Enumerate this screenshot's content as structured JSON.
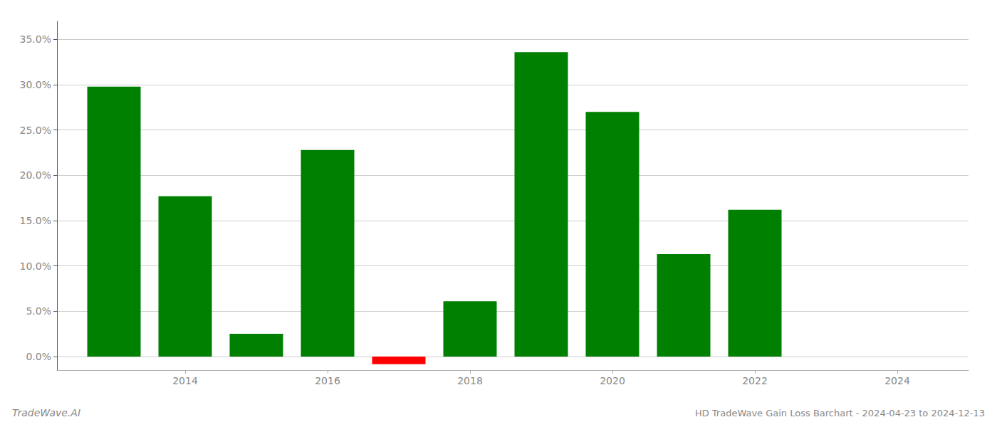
{
  "chart_data": {
    "type": "bar",
    "title": "HD TradeWave Gain Loss Barchart - 2024-04-23 to 2024-12-13",
    "annotations": [
      "TradeWave.AI"
    ],
    "x": [
      2013,
      2014,
      2015,
      2016,
      2017,
      2018,
      2019,
      2020,
      2021,
      2022
    ],
    "values": [
      29.8,
      17.7,
      2.5,
      22.8,
      -0.85,
      6.1,
      33.6,
      27.0,
      11.3,
      16.2
    ],
    "colors": [
      "#008000",
      "#008000",
      "#008000",
      "#008000",
      "#ff0000",
      "#008000",
      "#008000",
      "#008000",
      "#008000",
      "#008000"
    ],
    "xlim": [
      2012.2,
      2025.0
    ],
    "xticks": [
      2014,
      2016,
      2018,
      2020,
      2022,
      2024
    ],
    "ylim": [
      -1.5,
      37
    ],
    "yticks": [
      {
        "value": 0.0,
        "label": "0.0%"
      },
      {
        "value": 5.0,
        "label": "5.0%"
      },
      {
        "value": 10.0,
        "label": "10.0%"
      },
      {
        "value": 15.0,
        "label": "15.0%"
      },
      {
        "value": 20.0,
        "label": "20.0%"
      },
      {
        "value": 25.0,
        "label": "25.0%"
      },
      {
        "value": 30.0,
        "label": "30.0%"
      },
      {
        "value": 35.0,
        "label": "35.0%"
      }
    ],
    "grid": true
  }
}
